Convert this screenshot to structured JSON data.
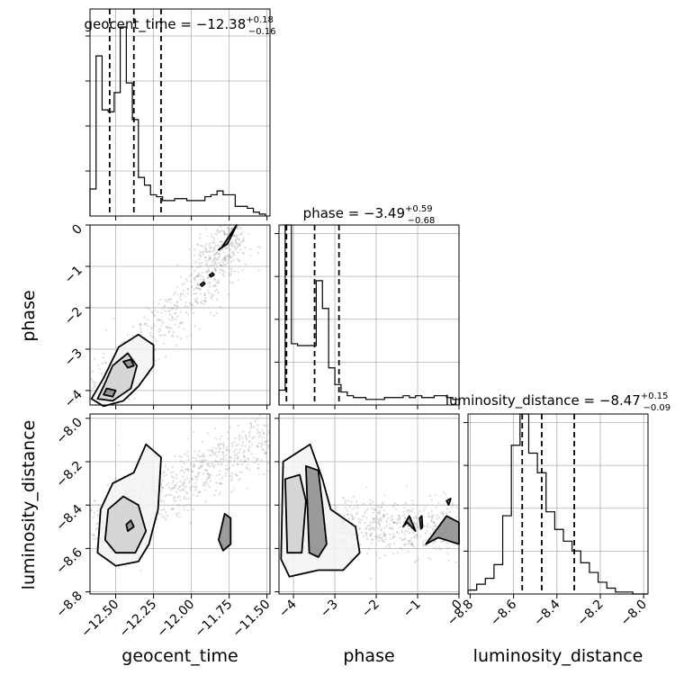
{
  "chart_data": {
    "type": "corner",
    "parameters": [
      "geocent_time",
      "phase",
      "luminosity_distance"
    ],
    "axes": {
      "geocent_time": {
        "range": [
          -12.67,
          -11.48
        ],
        "ticks": [
          -12.5,
          -12.25,
          -12.0,
          -11.75,
          -11.5
        ],
        "tick_labels": [
          "−12.50",
          "−12.25",
          "−12.00",
          "−11.75",
          "−11.50"
        ]
      },
      "phase": {
        "range": [
          -4.35,
          0
        ],
        "ticks": [
          -4,
          -3,
          -2,
          -1,
          0
        ],
        "tick_labels": [
          "−4",
          "−3",
          "−2",
          "−1",
          "0"
        ]
      },
      "luminosity_distance": {
        "range": [
          -8.81,
          -7.98
        ],
        "ticks": [
          -8.8,
          -8.6,
          -8.4,
          -8.2,
          -8.0
        ],
        "tick_labels": [
          "−8.8",
          "−8.6",
          "−8.4",
          "−8.2",
          "−8.0"
        ]
      }
    },
    "titles": [
      {
        "param": "geocent_time",
        "label": "geocent_time = −12.38",
        "plus": "+0.18",
        "minus": "−0.16"
      },
      {
        "param": "phase",
        "label": "phase = −3.49",
        "plus": "+0.59",
        "minus": "−0.68"
      },
      {
        "param": "luminosity_distance",
        "label": "luminosity_distance = −8.47",
        "plus": "+0.15",
        "minus": "−0.09"
      }
    ],
    "histograms": [
      {
        "param": "geocent_time",
        "edges": [
          -12.67,
          -12.63,
          -12.59,
          -12.55,
          -12.51,
          -12.47,
          -12.43,
          -12.39,
          -12.35,
          -12.31,
          -12.27,
          -12.23,
          -12.19,
          -12.15,
          -12.11,
          -12.07,
          -12.03,
          -11.99,
          -11.95,
          -11.91,
          -11.87,
          -11.83,
          -11.79,
          -11.75,
          -11.71,
          -11.67,
          -11.63,
          -11.59,
          -11.55,
          -11.51
        ],
        "counts": [
          14,
          83,
          55,
          54,
          64,
          98,
          69,
          50,
          20,
          16,
          11,
          10,
          8,
          8,
          9,
          9,
          8,
          8,
          8,
          10,
          11,
          13,
          11,
          11,
          5,
          5,
          4,
          2,
          1
        ],
        "quantiles": [
          -12.54,
          -12.38,
          -12.2
        ]
      },
      {
        "param": "phase",
        "edges": [
          -4.35,
          -4.2,
          -4.05,
          -3.9,
          -3.75,
          -3.6,
          -3.45,
          -3.3,
          -3.15,
          -3.0,
          -2.85,
          -2.7,
          -2.55,
          -2.4,
          -2.25,
          -2.1,
          -1.95,
          -1.8,
          -1.65,
          -1.5,
          -1.35,
          -1.2,
          -1.05,
          -0.9,
          -0.75,
          -0.6,
          -0.45,
          -0.3,
          -0.15,
          0.0
        ],
        "counts": [
          8,
          97,
          33,
          32,
          32,
          32,
          67,
          52,
          20,
          11,
          7,
          5,
          4,
          4,
          3,
          3,
          3,
          4,
          4,
          4,
          5,
          4,
          5,
          4,
          4,
          5,
          5,
          4,
          3
        ],
        "quantiles": [
          -4.17,
          -3.49,
          -2.9
        ]
      },
      {
        "param": "luminosity_distance",
        "edges": [
          -8.81,
          -8.77,
          -8.73,
          -8.69,
          -8.65,
          -8.61,
          -8.57,
          -8.53,
          -8.49,
          -8.45,
          -8.41,
          -8.37,
          -8.33,
          -8.29,
          -8.25,
          -8.21,
          -8.17,
          -8.13,
          -8.09,
          -8.05,
          -8.01,
          -7.98
        ],
        "counts": [
          2,
          5,
          8,
          15,
          40,
          76,
          92,
          72,
          62,
          42,
          33,
          27,
          22,
          16,
          11,
          6,
          3,
          1,
          1,
          0,
          0
        ],
        "quantiles": [
          -8.56,
          -8.47,
          -8.32
        ]
      }
    ],
    "contours_2d": [
      {
        "x": "geocent_time",
        "y": "phase",
        "trend": [
          [
            -12.67,
            -4.3
          ],
          [
            -11.92,
            -1.3
          ],
          [
            -11.7,
            0.0
          ]
        ],
        "levels": [
          [
            [
              -12.66,
              -4.2
            ],
            [
              -12.58,
              -4.38
            ],
            [
              -12.45,
              -4.25
            ],
            [
              -12.35,
              -3.9
            ],
            [
              -12.25,
              -3.4
            ],
            [
              -12.25,
              -2.9
            ],
            [
              -12.35,
              -2.65
            ],
            [
              -12.48,
              -2.95
            ],
            [
              -12.58,
              -3.7
            ]
          ],
          [
            [
              -12.62,
              -4.2
            ],
            [
              -12.52,
              -4.25
            ],
            [
              -12.4,
              -3.95
            ],
            [
              -12.36,
              -3.4
            ],
            [
              -12.42,
              -3.1
            ],
            [
              -12.52,
              -3.4
            ],
            [
              -12.58,
              -3.9
            ]
          ],
          [
            [
              -12.58,
              -4.1
            ],
            [
              -12.52,
              -4.15
            ],
            [
              -12.5,
              -4.0
            ],
            [
              -12.56,
              -3.95
            ]
          ],
          [
            [
              -12.42,
              -3.45
            ],
            [
              -12.38,
              -3.4
            ],
            [
              -12.4,
              -3.25
            ],
            [
              -12.45,
              -3.3
            ]
          ],
          [
            [
              -11.93,
              -1.48
            ],
            [
              -11.91,
              -1.42
            ],
            [
              -11.92,
              -1.38
            ],
            [
              -11.94,
              -1.44
            ]
          ],
          [
            [
              -11.87,
              -1.25
            ],
            [
              -11.85,
              -1.2
            ],
            [
              -11.86,
              -1.16
            ],
            [
              -11.88,
              -1.21
            ]
          ],
          [
            [
              -11.8,
              -0.55
            ],
            [
              -11.72,
              -0.1
            ],
            [
              -11.7,
              0.0
            ],
            [
              -11.76,
              -0.45
            ],
            [
              -11.82,
              -0.6
            ]
          ]
        ]
      },
      {
        "x": "geocent_time",
        "y": "luminosity_distance",
        "trend": [
          [
            -12.67,
            -8.5
          ],
          [
            -11.48,
            -8.1
          ]
        ],
        "levels": [
          [
            [
              -12.62,
              -8.62
            ],
            [
              -12.6,
              -8.42
            ],
            [
              -12.52,
              -8.3
            ],
            [
              -12.38,
              -8.25
            ],
            [
              -12.3,
              -8.12
            ],
            [
              -12.2,
              -8.18
            ],
            [
              -12.22,
              -8.42
            ],
            [
              -12.28,
              -8.58
            ],
            [
              -12.35,
              -8.66
            ],
            [
              -12.5,
              -8.68
            ]
          ],
          [
            [
              -12.57,
              -8.56
            ],
            [
              -12.55,
              -8.42
            ],
            [
              -12.45,
              -8.36
            ],
            [
              -12.35,
              -8.4
            ],
            [
              -12.3,
              -8.52
            ],
            [
              -12.37,
              -8.62
            ],
            [
              -12.5,
              -8.62
            ]
          ],
          [
            [
              -12.42,
              -8.52
            ],
            [
              -12.38,
              -8.5
            ],
            [
              -12.4,
              -8.47
            ],
            [
              -12.43,
              -8.49
            ]
          ],
          [
            [
              -11.82,
              -8.56
            ],
            [
              -11.78,
              -8.44
            ],
            [
              -11.74,
              -8.46
            ],
            [
              -11.74,
              -8.58
            ],
            [
              -11.79,
              -8.61
            ]
          ]
        ]
      },
      {
        "x": "phase",
        "y": "luminosity_distance",
        "trend": [
          [
            -4.3,
            -8.5
          ],
          [
            0.0,
            -8.5
          ]
        ],
        "levels": [
          [
            [
              -4.3,
              -8.65
            ],
            [
              -4.25,
              -8.2
            ],
            [
              -3.6,
              -8.12
            ],
            [
              -3.3,
              -8.28
            ],
            [
              -3.1,
              -8.42
            ],
            [
              -2.5,
              -8.5
            ],
            [
              -2.4,
              -8.62
            ],
            [
              -2.8,
              -8.7
            ],
            [
              -3.4,
              -8.7
            ],
            [
              -4.1,
              -8.73
            ]
          ],
          [
            [
              -4.15,
              -8.62
            ],
            [
              -4.2,
              -8.28
            ],
            [
              -3.85,
              -8.26
            ],
            [
              -3.7,
              -8.38
            ],
            [
              -3.8,
              -8.62
            ]
          ],
          [
            [
              -3.62,
              -8.62
            ],
            [
              -3.7,
              -8.22
            ],
            [
              -3.4,
              -8.24
            ],
            [
              -3.3,
              -8.4
            ],
            [
              -3.2,
              -8.58
            ],
            [
              -3.4,
              -8.64
            ]
          ],
          [
            [
              -0.95,
              -8.46
            ],
            [
              -0.9,
              -8.45
            ],
            [
              -0.88,
              -8.5
            ],
            [
              -0.92,
              -8.51
            ]
          ],
          [
            [
              -1.35,
              -8.5
            ],
            [
              -1.2,
              -8.45
            ],
            [
              -1.05,
              -8.52
            ],
            [
              -1.25,
              -8.48
            ]
          ],
          [
            [
              -0.8,
              -8.58
            ],
            [
              -0.3,
              -8.45
            ],
            [
              0.0,
              -8.48
            ],
            [
              0.0,
              -8.58
            ],
            [
              -0.5,
              -8.55
            ]
          ],
          [
            [
              -0.3,
              -8.38
            ],
            [
              -0.2,
              -8.37
            ],
            [
              -0.25,
              -8.4
            ]
          ]
        ]
      }
    ],
    "grid": true,
    "line_color": "#000000",
    "scatter_color": "#9a9a9a"
  }
}
